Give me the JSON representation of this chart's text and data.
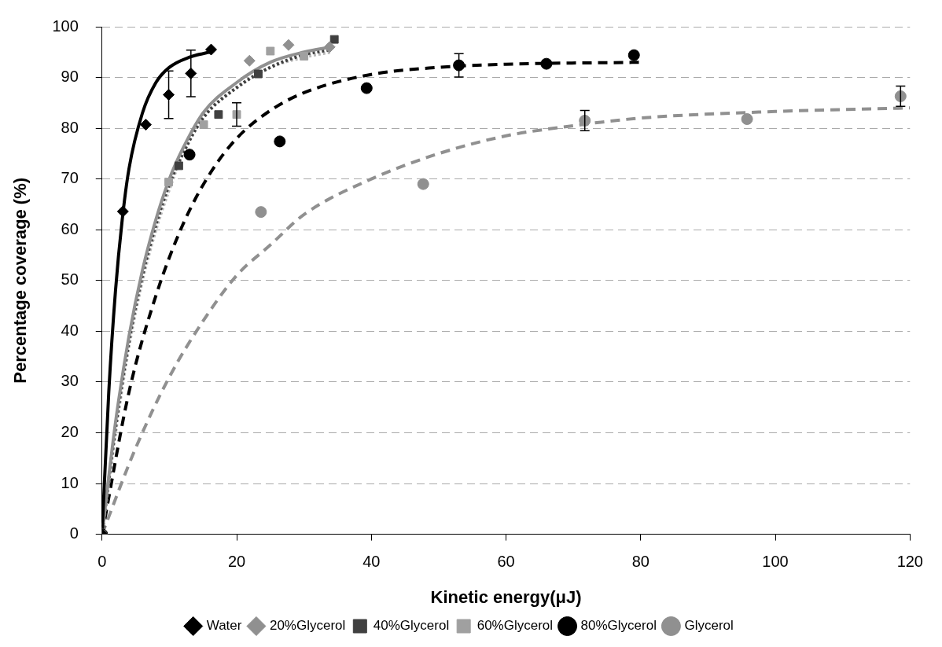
{
  "chart_data": {
    "type": "scatter",
    "xlabel": "Kinetic energy(μJ)",
    "ylabel": "Percentage coverage (%)",
    "xlim": [
      0,
      120
    ],
    "xticks": [
      0,
      20,
      40,
      60,
      80,
      100,
      120
    ],
    "ylim": [
      0,
      100
    ],
    "yticks": [
      0,
      10,
      20,
      30,
      40,
      50,
      60,
      70,
      80,
      90,
      100
    ],
    "grid": "y",
    "legend": "bottom",
    "series": [
      {
        "name": "Water",
        "color": "#000000",
        "marker": "diamond",
        "x": [
          0,
          3.1,
          6.5,
          9.9,
          13.2,
          16.2
        ],
        "values": [
          0,
          63.6,
          80.7,
          86.6,
          90.8,
          95.5
        ],
        "errors": [
          null,
          null,
          null,
          4.7,
          4.6,
          null
        ]
      },
      {
        "name": "20%Glycerol",
        "color": "#909090",
        "marker": "diamond",
        "x": [
          0,
          21.9,
          27.7,
          33.8
        ],
        "values": [
          0,
          93.3,
          96.4,
          96
        ]
      },
      {
        "name": "40%Glycerol",
        "color": "#404040",
        "marker": "square",
        "x": [
          0,
          11.4,
          17.3,
          23.2,
          34.5
        ],
        "values": [
          0,
          72.6,
          82.7,
          90.7,
          97.5
        ]
      },
      {
        "name": "60%Glycerol",
        "color": "#a0a0a0",
        "marker": "square",
        "x": [
          0,
          9.9,
          15.1,
          20,
          25,
          30
        ],
        "values": [
          0,
          69.4,
          80.7,
          82.7,
          95.2,
          94.2
        ],
        "errors": [
          null,
          null,
          null,
          2.3,
          null,
          null
        ]
      },
      {
        "name": "80%Glycerol",
        "color": "#000000",
        "marker": "circle",
        "x": [
          0,
          13,
          26.4,
          39.3,
          53,
          66,
          79
        ],
        "values": [
          0,
          74.8,
          77.4,
          87.9,
          92.4,
          92.7,
          94.4
        ],
        "errors": [
          null,
          null,
          null,
          null,
          2.3,
          null,
          null
        ]
      },
      {
        "name": "Glycerol",
        "color": "#909090",
        "marker": "circle",
        "x": [
          0,
          23.6,
          47.7,
          71.7,
          95.8,
          118.6
        ],
        "values": [
          0,
          63.5,
          69,
          81.5,
          81.8,
          86.3
        ],
        "errors": [
          null,
          null,
          null,
          2,
          null,
          2
        ]
      },
      {
        "type": "line",
        "color": "#000000",
        "line_style": "solid",
        "x": [
          0,
          1,
          2,
          3,
          4,
          6,
          8,
          10,
          13,
          16
        ],
        "values": [
          0,
          28,
          48,
          62,
          72,
          83,
          89,
          92,
          94,
          95
        ]
      },
      {
        "type": "line",
        "color": "#909090",
        "line_style": "solid",
        "x": [
          0,
          2,
          4,
          6,
          8,
          10,
          12,
          15,
          20,
          25,
          30,
          34
        ],
        "values": [
          0,
          22,
          39,
          52,
          62,
          70,
          76,
          83,
          89,
          93,
          95,
          96
        ]
      },
      {
        "type": "line",
        "color": "#404040",
        "line_style": "dotted",
        "x": [
          0,
          2,
          4,
          6,
          8,
          10,
          12,
          15,
          20,
          25,
          30,
          34
        ],
        "values": [
          0,
          21,
          38,
          51,
          61,
          69,
          75,
          82,
          88,
          92,
          94.5,
          95.5
        ]
      },
      {
        "type": "line",
        "color": "#b8b8b8",
        "line_style": "dotted",
        "x": [
          0,
          2,
          4,
          6,
          8,
          10,
          12,
          15,
          20,
          25,
          30,
          34
        ],
        "values": [
          0,
          20,
          37,
          50,
          60,
          68,
          75,
          82,
          88,
          92,
          94,
          95
        ]
      },
      {
        "type": "line",
        "color": "#000000",
        "line_style": "dashed",
        "x": [
          0,
          4,
          8,
          12,
          16,
          20,
          25,
          30,
          40,
          50,
          60,
          80
        ],
        "values": [
          0,
          28,
          47,
          61,
          71,
          78,
          83.5,
          87,
          90.6,
          92,
          92.6,
          93
        ]
      },
      {
        "type": "line",
        "color": "#909090",
        "line_style": "dashed",
        "x": [
          0,
          5,
          10,
          15,
          20,
          25,
          30,
          40,
          50,
          60,
          70,
          80,
          100,
          120
        ],
        "values": [
          0,
          17,
          31,
          42,
          51,
          57,
          63,
          70,
          75,
          78.5,
          80.5,
          82,
          83.3,
          84
        ]
      }
    ]
  }
}
